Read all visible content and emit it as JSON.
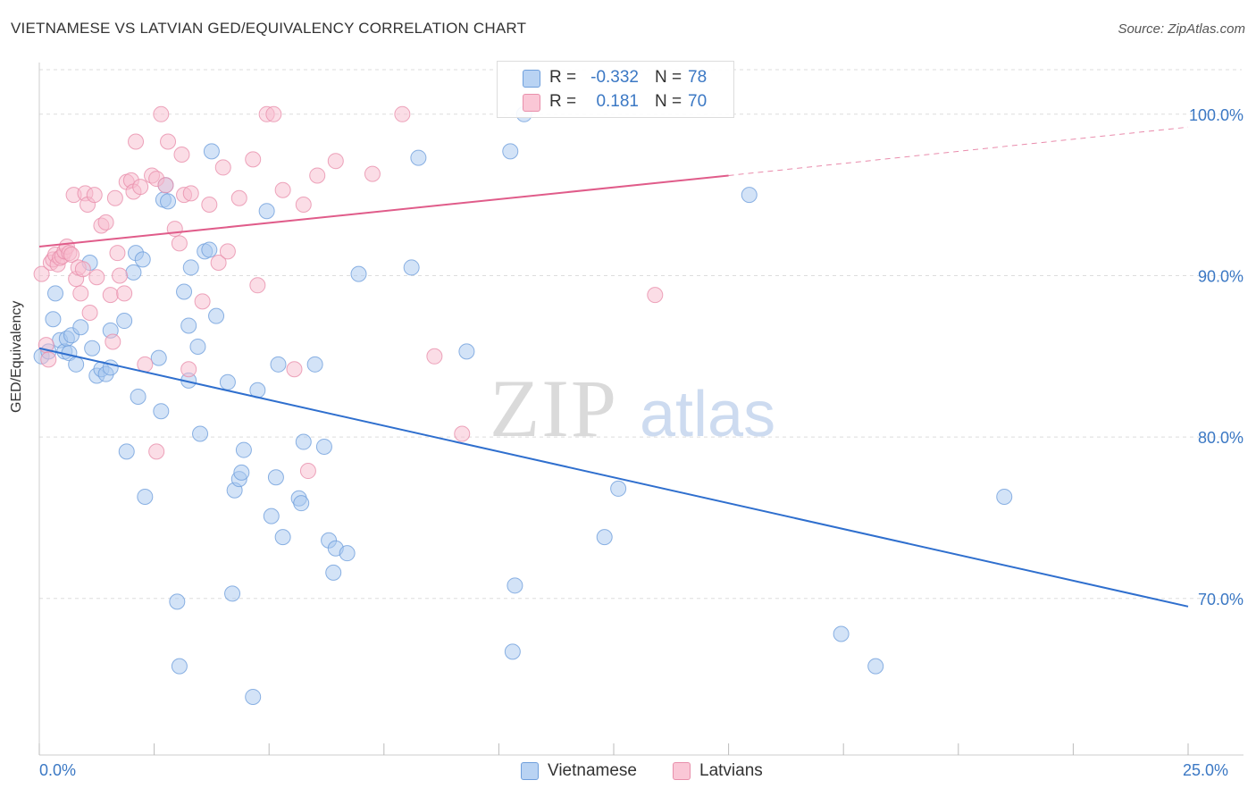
{
  "header": {
    "title": "VIETNAMESE VS LATVIAN GED/EQUIVALENCY CORRELATION CHART",
    "source": "Source: ZipAtlas.com"
  },
  "watermark": {
    "zip": "ZIP",
    "atlas": "atlas"
  },
  "legend_stats": {
    "r_label": "R =",
    "n_label": "N =",
    "vietnamese": {
      "r": "-0.332",
      "n": "78"
    },
    "latvians": {
      "r": "0.181",
      "n": "70"
    }
  },
  "colors": {
    "vietnamese_fill": "#a8c8f0",
    "vietnamese_stroke": "#6f9fdc",
    "vietnamese_line": "#2f6fce",
    "latvians_fill": "#f8bccd",
    "latvians_stroke": "#e88fab",
    "latvians_line": "#e05c8a",
    "grid": "#dddddd",
    "axis_text": "#3b78c4"
  },
  "chart_data": {
    "type": "scatter",
    "title": "VIETNAMESE VS LATVIAN GED/EQUIVALENCY CORRELATION CHART",
    "xlabel": "",
    "ylabel": "GED/Equivalency",
    "xlim": [
      0,
      25
    ],
    "ylim": [
      60.3,
      103.2
    ],
    "x_tick_labels": [
      "0.0%",
      "25.0%"
    ],
    "y_ticks": [
      70,
      80,
      90,
      100
    ],
    "y_tick_labels": [
      "70.0%",
      "80.0%",
      "90.0%",
      "100.0%"
    ],
    "grid": true,
    "legend_position": "bottom",
    "series": [
      {
        "name": "Vietnamese",
        "r": -0.332,
        "n": 78,
        "trend": {
          "x": [
            0,
            25
          ],
          "y": [
            85.5,
            69.5
          ]
        },
        "points": [
          [
            0.05,
            85.0
          ],
          [
            0.2,
            85.3
          ],
          [
            0.3,
            87.3
          ],
          [
            0.35,
            88.9
          ],
          [
            0.45,
            86.0
          ],
          [
            0.55,
            85.3
          ],
          [
            0.6,
            86.1
          ],
          [
            0.65,
            85.2
          ],
          [
            0.7,
            86.3
          ],
          [
            0.8,
            84.5
          ],
          [
            0.9,
            86.8
          ],
          [
            1.1,
            90.8
          ],
          [
            1.15,
            85.5
          ],
          [
            1.25,
            83.8
          ],
          [
            1.35,
            84.2
          ],
          [
            1.45,
            83.9
          ],
          [
            1.55,
            84.3
          ],
          [
            1.55,
            86.6
          ],
          [
            1.85,
            87.2
          ],
          [
            1.9,
            79.1
          ],
          [
            2.05,
            90.2
          ],
          [
            2.1,
            91.4
          ],
          [
            2.15,
            82.5
          ],
          [
            2.25,
            91.0
          ],
          [
            2.3,
            76.3
          ],
          [
            2.6,
            84.9
          ],
          [
            2.65,
            81.6
          ],
          [
            2.7,
            94.7
          ],
          [
            2.75,
            95.6
          ],
          [
            2.8,
            94.6
          ],
          [
            3.0,
            69.8
          ],
          [
            3.05,
            65.8
          ],
          [
            3.15,
            89.0
          ],
          [
            3.25,
            83.5
          ],
          [
            3.25,
            86.9
          ],
          [
            3.3,
            90.5
          ],
          [
            3.45,
            85.6
          ],
          [
            3.5,
            80.2
          ],
          [
            3.6,
            91.5
          ],
          [
            3.7,
            91.6
          ],
          [
            3.75,
            97.7
          ],
          [
            3.85,
            87.5
          ],
          [
            4.1,
            83.4
          ],
          [
            4.2,
            70.3
          ],
          [
            4.25,
            76.7
          ],
          [
            4.35,
            77.4
          ],
          [
            4.4,
            77.8
          ],
          [
            4.45,
            79.2
          ],
          [
            4.65,
            63.9
          ],
          [
            4.75,
            82.9
          ],
          [
            4.95,
            94.0
          ],
          [
            5.05,
            75.1
          ],
          [
            5.15,
            77.5
          ],
          [
            5.2,
            84.5
          ],
          [
            5.3,
            73.8
          ],
          [
            5.65,
            76.2
          ],
          [
            5.7,
            75.9
          ],
          [
            5.75,
            79.7
          ],
          [
            6.0,
            84.5
          ],
          [
            6.2,
            79.4
          ],
          [
            6.3,
            73.6
          ],
          [
            6.4,
            71.6
          ],
          [
            6.45,
            73.1
          ],
          [
            6.7,
            72.8
          ],
          [
            6.95,
            90.1
          ],
          [
            8.1,
            90.5
          ],
          [
            8.25,
            97.3
          ],
          [
            9.3,
            85.3
          ],
          [
            10.25,
            97.7
          ],
          [
            10.3,
            66.7
          ],
          [
            10.35,
            70.8
          ],
          [
            10.55,
            100.0
          ],
          [
            12.3,
            73.8
          ],
          [
            12.6,
            76.8
          ],
          [
            15.45,
            95.0
          ],
          [
            17.45,
            67.8
          ],
          [
            18.2,
            65.8
          ],
          [
            21.0,
            76.3
          ]
        ]
      },
      {
        "name": "Latvians",
        "r": 0.181,
        "n": 70,
        "trend": {
          "x": [
            0,
            15.0
          ],
          "y": [
            91.8,
            96.2
          ]
        },
        "trend_dashed": {
          "x": [
            15.0,
            25
          ],
          "y": [
            96.2,
            99.2
          ]
        },
        "points": [
          [
            0.05,
            90.1
          ],
          [
            0.15,
            85.7
          ],
          [
            0.2,
            84.8
          ],
          [
            0.25,
            90.8
          ],
          [
            0.3,
            91.0
          ],
          [
            0.35,
            91.3
          ],
          [
            0.4,
            90.7
          ],
          [
            0.45,
            91.1
          ],
          [
            0.5,
            91.2
          ],
          [
            0.55,
            91.5
          ],
          [
            0.6,
            91.8
          ],
          [
            0.65,
            91.4
          ],
          [
            0.7,
            91.3
          ],
          [
            0.75,
            95.0
          ],
          [
            0.8,
            89.8
          ],
          [
            0.85,
            90.5
          ],
          [
            0.9,
            88.9
          ],
          [
            0.95,
            90.4
          ],
          [
            1.0,
            95.1
          ],
          [
            1.05,
            94.4
          ],
          [
            1.1,
            87.7
          ],
          [
            1.2,
            95.0
          ],
          [
            1.25,
            89.9
          ],
          [
            1.35,
            93.1
          ],
          [
            1.45,
            93.3
          ],
          [
            1.55,
            88.8
          ],
          [
            1.6,
            85.9
          ],
          [
            1.65,
            94.8
          ],
          [
            1.7,
            91.4
          ],
          [
            1.75,
            90.0
          ],
          [
            1.85,
            88.9
          ],
          [
            1.9,
            95.8
          ],
          [
            2.0,
            95.9
          ],
          [
            2.05,
            95.2
          ],
          [
            2.1,
            98.3
          ],
          [
            2.2,
            95.5
          ],
          [
            2.3,
            84.5
          ],
          [
            2.45,
            96.2
          ],
          [
            2.55,
            96.0
          ],
          [
            2.55,
            79.1
          ],
          [
            2.65,
            100.0
          ],
          [
            2.75,
            95.6
          ],
          [
            2.8,
            98.3
          ],
          [
            2.95,
            92.9
          ],
          [
            3.05,
            92.0
          ],
          [
            3.1,
            97.5
          ],
          [
            3.15,
            95.0
          ],
          [
            3.25,
            84.2
          ],
          [
            3.3,
            95.1
          ],
          [
            3.55,
            88.4
          ],
          [
            3.7,
            94.4
          ],
          [
            3.9,
            90.8
          ],
          [
            4.0,
            96.7
          ],
          [
            4.1,
            91.5
          ],
          [
            4.35,
            94.8
          ],
          [
            4.65,
            97.2
          ],
          [
            4.75,
            89.4
          ],
          [
            4.95,
            100.0
          ],
          [
            5.1,
            100.0
          ],
          [
            5.3,
            95.3
          ],
          [
            5.55,
            84.2
          ],
          [
            5.75,
            94.4
          ],
          [
            5.85,
            77.9
          ],
          [
            6.05,
            96.2
          ],
          [
            6.45,
            97.1
          ],
          [
            7.25,
            96.3
          ],
          [
            7.9,
            100.0
          ],
          [
            8.6,
            85.0
          ],
          [
            9.2,
            80.2
          ],
          [
            13.4,
            88.8
          ]
        ]
      }
    ]
  }
}
